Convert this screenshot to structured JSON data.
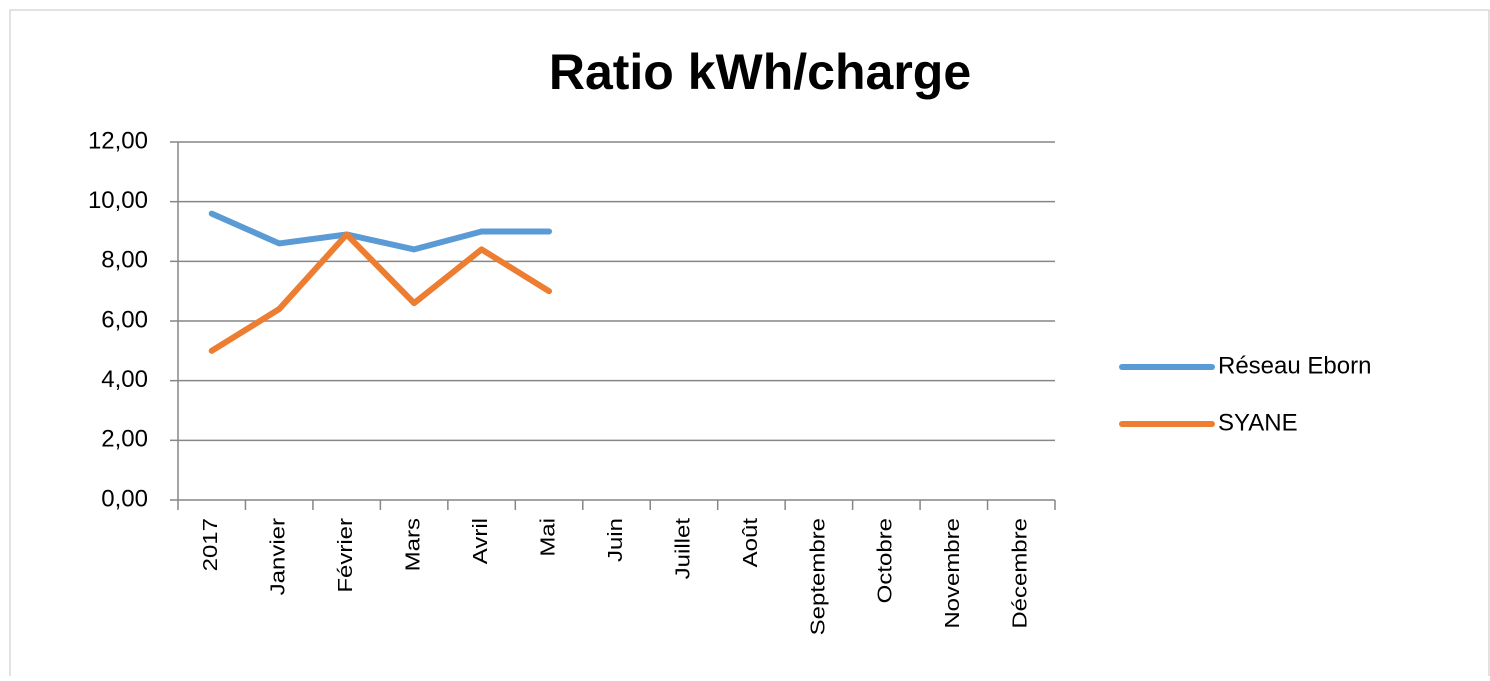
{
  "chart_data": {
    "type": "line",
    "title": "Ratio kWh/charge",
    "categories": [
      "2017",
      "Janvier",
      "Février",
      "Mars",
      "Avril",
      "Mai",
      "Juin",
      "Juillet",
      "Août",
      "Septembre",
      "Octobre",
      "Novembre",
      "Décembre"
    ],
    "series": [
      {
        "name": "Réseau Eborn",
        "color": "#5b9bd5",
        "values": [
          9.6,
          8.6,
          8.9,
          8.4,
          9.0,
          9.0,
          null,
          null,
          null,
          null,
          null,
          null,
          null
        ]
      },
      {
        "name": "SYANE",
        "color": "#ed7d31",
        "values": [
          5.0,
          6.4,
          8.9,
          6.6,
          8.4,
          7.0,
          null,
          null,
          null,
          null,
          null,
          null,
          null
        ]
      }
    ],
    "ylim": [
      0,
      12
    ],
    "yticks": [
      {
        "value": 0,
        "label": "0,00"
      },
      {
        "value": 2,
        "label": "2,00"
      },
      {
        "value": 4,
        "label": "4,00"
      },
      {
        "value": 6,
        "label": "6,00"
      },
      {
        "value": 8,
        "label": "8,00"
      },
      {
        "value": 10,
        "label": "10,00"
      },
      {
        "value": 12,
        "label": "12,00"
      }
    ],
    "grid": true,
    "legend": "right"
  }
}
